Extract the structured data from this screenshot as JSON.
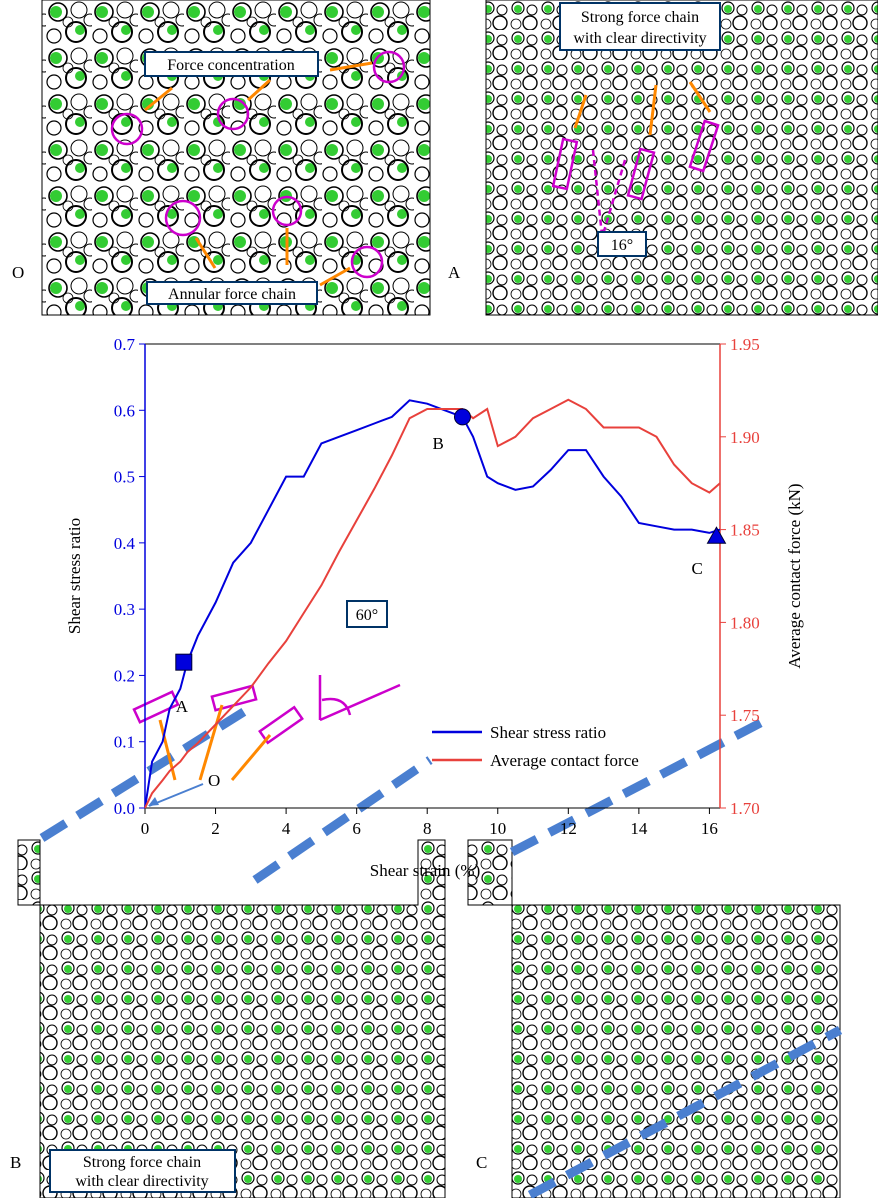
{
  "chart_data": {
    "type": "line",
    "x_label": "Shear strain (%)",
    "y_label": "Shear stress ratio",
    "y2_label": "Average contact force (kN)",
    "xlim": [
      0,
      16.3
    ],
    "xticks": [
      0,
      2,
      4,
      6,
      8,
      10,
      12,
      14,
      16
    ],
    "ylim": [
      0,
      0.7
    ],
    "yticks": [
      {
        "value": 0,
        "label": "0.0"
      },
      0.1,
      0.2,
      0.3,
      0.4,
      0.5,
      0.6,
      0.7
    ],
    "y2lim": [
      1.7,
      1.95
    ],
    "y2ticks": [
      {
        "value": 1.7,
        "label": "1.70"
      },
      1.75,
      {
        "value": 1.8,
        "label": "1.80"
      },
      1.85,
      {
        "value": 1.9,
        "label": "1.90"
      },
      1.95
    ],
    "x": [
      0,
      0.2,
      0.5,
      0.7,
      1,
      1.2,
      1.5,
      2,
      2.5,
      3,
      3.5,
      4,
      4.5,
      5,
      5.5,
      6,
      6.5,
      7,
      7.5,
      8,
      8.5,
      9,
      9.3,
      9.7,
      10,
      10.5,
      11,
      11.5,
      12,
      12.5,
      13,
      13.5,
      14,
      14.5,
      15,
      15.5,
      16,
      16.3
    ],
    "series": [
      {
        "name": "Shear stress ratio",
        "color": "#0000dd",
        "axis": "y",
        "values": [
          0,
          0.07,
          0.1,
          0.15,
          0.18,
          0.22,
          0.26,
          0.31,
          0.37,
          0.4,
          0.45,
          0.5,
          0.5,
          0.55,
          0.56,
          0.57,
          0.58,
          0.59,
          0.615,
          0.61,
          0.6,
          0.59,
          0.56,
          0.5,
          0.49,
          0.48,
          0.485,
          0.51,
          0.54,
          0.54,
          0.5,
          0.47,
          0.43,
          0.425,
          0.42,
          0.42,
          0.415,
          0.42
        ]
      },
      {
        "name": "Average contact force",
        "color": "#e8413c",
        "axis": "y2",
        "values": [
          1.7,
          1.708,
          1.715,
          1.72,
          1.725,
          1.73,
          1.735,
          1.745,
          1.755,
          1.765,
          1.778,
          1.79,
          1.805,
          1.82,
          1.838,
          1.855,
          1.872,
          1.89,
          1.91,
          1.915,
          1.915,
          1.915,
          1.91,
          1.915,
          1.895,
          1.9,
          1.91,
          1.915,
          1.92,
          1.915,
          1.905,
          1.905,
          1.905,
          1.9,
          1.885,
          1.875,
          1.87,
          1.875
        ]
      }
    ],
    "points": [
      {
        "label": "A",
        "x": 1.1,
        "y": 0.22,
        "shape": "square"
      },
      {
        "label": "B",
        "x": 9,
        "y": 0.59,
        "shape": "circle"
      },
      {
        "label": "C",
        "x": 16.2,
        "y": 0.41,
        "shape": "triangle"
      },
      {
        "label": "O",
        "x": 0,
        "y": 0,
        "shape": "arrow"
      }
    ]
  },
  "panels": [
    {
      "label": "O",
      "annotations": [
        "Force concentration",
        "Annular force chain"
      ]
    },
    {
      "label": "A",
      "annotations": [
        "Strong force chain",
        "with  clear directivity",
        "16°"
      ]
    },
    {
      "label": "B",
      "annotations": [
        "60°",
        "Strong force chain",
        "with  clear directivity"
      ]
    },
    {
      "label": "C"
    }
  ]
}
